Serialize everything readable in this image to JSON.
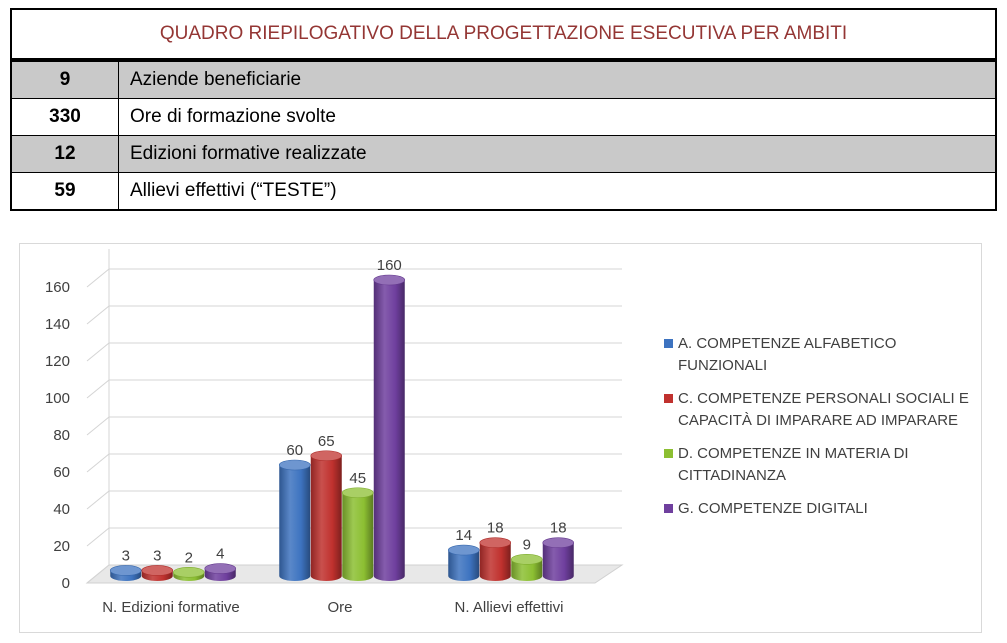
{
  "summary_table": {
    "title": "QUADRO RIEPILOGATIVO DELLA PROGETTAZIONE ESECUTIVA PER AMBITI",
    "rows": [
      {
        "value": "9",
        "label": "Aziende beneficiarie"
      },
      {
        "value": "330",
        "label": "Ore di formazione svolte"
      },
      {
        "value": "12",
        "label": "Edizioni formative realizzate"
      },
      {
        "value": "59",
        "label": "Allievi effettivi (“TESTE”)"
      }
    ]
  },
  "chart_data": {
    "type": "bar",
    "style": "3d-cylinder",
    "categories": [
      "N. Edizioni formative",
      "Ore",
      "N. Allievi effettivi"
    ],
    "series": [
      {
        "name": "A. COMPETENZE ALFABETICO FUNZIONALI",
        "color": "#3d73c0",
        "values": [
          3,
          60,
          14
        ]
      },
      {
        "name": "C. COMPETENZE PERSONALI SOCIALI E CAPACITÀ DI IMPARARE AD IMPARARE",
        "color": "#c0312e",
        "values": [
          3,
          65,
          18
        ]
      },
      {
        "name": "D. COMPETENZE IN MATERIA DI CITTADINANZA",
        "color": "#8cbf32",
        "values": [
          2,
          45,
          9
        ]
      },
      {
        "name": "G. COMPETENZE DIGITALI",
        "color": "#6f3f9e",
        "values": [
          4,
          160,
          18
        ]
      }
    ],
    "ylim": [
      0,
      160
    ],
    "yticks": [
      0,
      20,
      40,
      60,
      80,
      100,
      120,
      140,
      160
    ],
    "grid": true,
    "legend": "right"
  },
  "legend_lines": [
    [
      "A. COMPETENZE ALFABETICO",
      "FUNZIONALI"
    ],
    [
      "C. COMPETENZE PERSONALI SOCIALI E",
      "CAPACITÀ DI IMPARARE AD IMPARARE"
    ],
    [
      "D. COMPETENZE IN MATERIA DI",
      "CITTADINANZA"
    ],
    [
      "G. COMPETENZE DIGITALI"
    ]
  ]
}
